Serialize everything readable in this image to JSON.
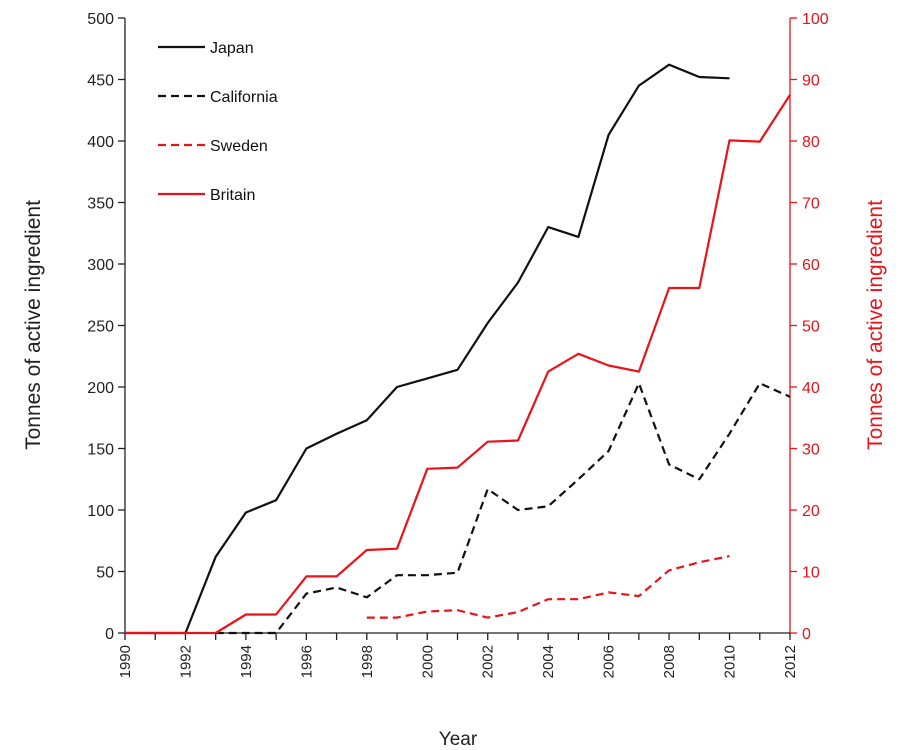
{
  "chart_data": {
    "type": "line",
    "xlabel": "Year",
    "ylabel_left": "Tonnes of active ingredient",
    "ylabel_right": "Tonnes of active ingredient",
    "xlim": [
      1990,
      2012
    ],
    "ylim_left": [
      0,
      500
    ],
    "ylim_right": [
      0,
      100
    ],
    "x_ticks": [
      "1990",
      "1992",
      "1994",
      "1996",
      "1998",
      "2000",
      "2002",
      "2004",
      "2006",
      "2008",
      "2010",
      "2012"
    ],
    "y_ticks_left": [
      "0",
      "50",
      "100",
      "150",
      "200",
      "250",
      "300",
      "350",
      "400",
      "450",
      "500"
    ],
    "y_ticks_right": [
      "0",
      "10",
      "20",
      "30",
      "40",
      "50",
      "60",
      "70",
      "80",
      "90",
      "100"
    ],
    "grid": false,
    "legend_position": "top-left",
    "colors": {
      "black": "#111111",
      "red": "#e8141a"
    },
    "series": [
      {
        "name": "Japan",
        "axis": "left",
        "color": "#111111",
        "dash": "solid",
        "points": [
          [
            1990,
            0
          ],
          [
            1991,
            0
          ],
          [
            1992,
            0
          ],
          [
            1993,
            62
          ],
          [
            1994,
            98
          ],
          [
            1995,
            108
          ],
          [
            1996,
            150
          ],
          [
            1997,
            162
          ],
          [
            1998,
            173
          ],
          [
            1999,
            200
          ],
          [
            2000,
            207
          ],
          [
            2001,
            214
          ],
          [
            2002,
            252
          ],
          [
            2003,
            285
          ],
          [
            2004,
            330
          ],
          [
            2005,
            322
          ],
          [
            2006,
            405
          ],
          [
            2007,
            445
          ],
          [
            2008,
            462
          ],
          [
            2009,
            452
          ],
          [
            2010,
            451
          ]
        ]
      },
      {
        "name": "California",
        "axis": "left",
        "color": "#111111",
        "dash": "dashed",
        "points": [
          [
            1993,
            0
          ],
          [
            1994,
            0
          ],
          [
            1995,
            0
          ],
          [
            1996,
            32
          ],
          [
            1997,
            37
          ],
          [
            1998,
            29
          ],
          [
            1999,
            47
          ],
          [
            2000,
            47
          ],
          [
            2001,
            49
          ],
          [
            2002,
            117
          ],
          [
            2003,
            100
          ],
          [
            2004,
            103
          ],
          [
            2005,
            125
          ],
          [
            2006,
            148
          ],
          [
            2007,
            203
          ],
          [
            2008,
            137
          ],
          [
            2009,
            125
          ],
          [
            2010,
            162
          ],
          [
            2011,
            203
          ],
          [
            2012,
            192
          ]
        ]
      },
      {
        "name": "Sweden",
        "axis": "right",
        "color": "#e8141a",
        "dash": "dashed",
        "points": [
          [
            1998,
            2.5
          ],
          [
            1999,
            2.5
          ],
          [
            2000,
            3.5
          ],
          [
            2001,
            3.7
          ],
          [
            2002,
            2.5
          ],
          [
            2003,
            3.4
          ],
          [
            2004,
            5.5
          ],
          [
            2005,
            5.5
          ],
          [
            2006,
            6.6
          ],
          [
            2007,
            6
          ],
          [
            2008,
            10.2
          ],
          [
            2009,
            11.5
          ],
          [
            2010,
            12.5
          ]
        ]
      },
      {
        "name": "Britain",
        "axis": "right",
        "color": "#e8141a",
        "dash": "solid",
        "points": [
          [
            1990,
            0
          ],
          [
            1991,
            0
          ],
          [
            1992,
            0
          ],
          [
            1993,
            0
          ],
          [
            1994,
            3
          ],
          [
            1995,
            3
          ],
          [
            1996,
            9.2
          ],
          [
            1997,
            9.2
          ],
          [
            1998,
            13.5
          ],
          [
            1999,
            13.7
          ],
          [
            2000,
            26.7
          ],
          [
            2001,
            26.9
          ],
          [
            2002,
            31.1
          ],
          [
            2003,
            31.3
          ],
          [
            2004,
            42.5
          ],
          [
            2005,
            45.4
          ],
          [
            2006,
            43.5
          ],
          [
            2007,
            42.5
          ],
          [
            2008,
            56.1
          ],
          [
            2009,
            56.1
          ],
          [
            2010,
            80.1
          ],
          [
            2011,
            79.9
          ],
          [
            2012,
            87.5
          ]
        ]
      }
    ]
  }
}
